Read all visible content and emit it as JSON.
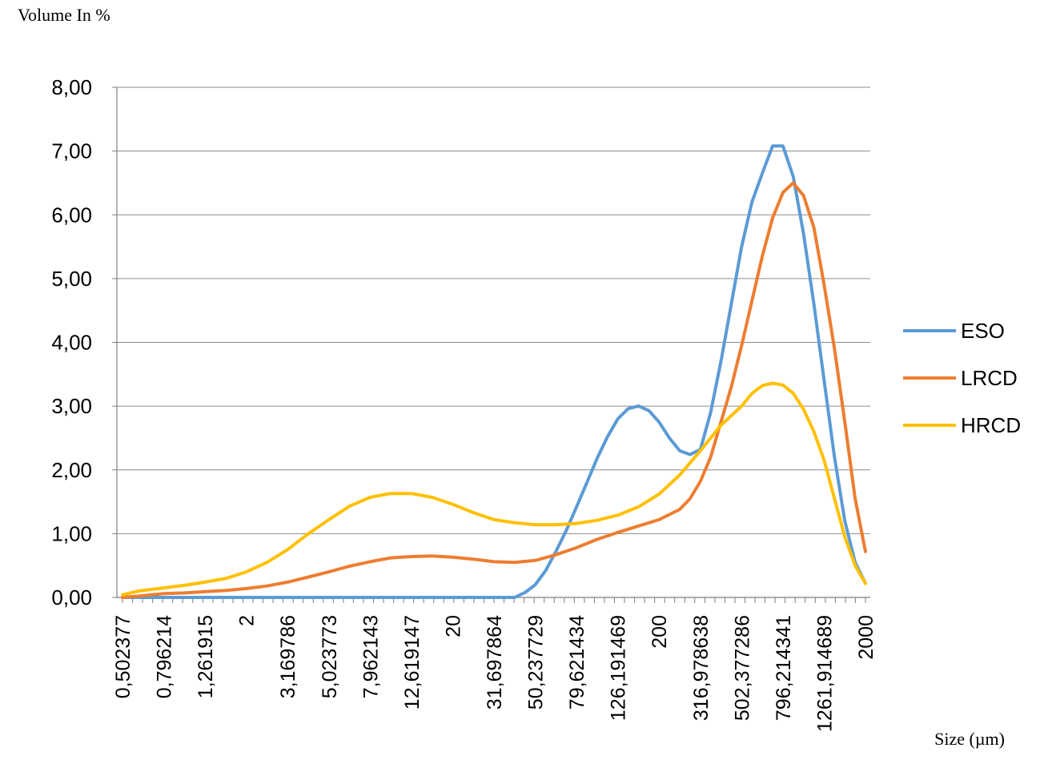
{
  "chart_data": {
    "type": "line",
    "ylabel": "Volume In %",
    "xlabel": "Size (µm)",
    "ylim": [
      0,
      8
    ],
    "y_ticks": [
      "0,00",
      "1,00",
      "2,00",
      "3,00",
      "4,00",
      "5,00",
      "6,00",
      "7,00",
      "8,00"
    ],
    "x_scale": "log",
    "x_ticks": [
      "0,502377",
      "0,796214",
      "1,261915",
      "2",
      "3,169786",
      "5,023773",
      "7,962143",
      "12,619147",
      "20",
      "31,697864",
      "50,237729",
      "79,621434",
      "126,191469",
      "200",
      "316,978638",
      "502,377286",
      "796,214341",
      "1261,914689",
      "2000"
    ],
    "x_tick_values": [
      0.502377,
      0.796214,
      1.261915,
      2,
      3.169786,
      5.023773,
      7.962143,
      12.619147,
      20,
      31.697864,
      50.237729,
      79.621434,
      126.191469,
      200,
      316.978638,
      502.377286,
      796.214341,
      1261.914689,
      2000
    ],
    "grid": true,
    "legend": "right",
    "series": [
      {
        "name": "ESO",
        "color": "#5B9BD5",
        "x": [
          0.502377,
          0.796214,
          1.261915,
          2,
          3.169786,
          5.023773,
          7.962143,
          12.619147,
          20,
          31.697864,
          40,
          45,
          50.237729,
          56.4,
          63.2,
          71,
          79.621434,
          89.3,
          100.2,
          112.5,
          126.191469,
          141.6,
          158.9,
          178.3,
          200,
          224.4,
          251.8,
          282.5,
          316.978638,
          355.6,
          399,
          447.7,
          502.377286,
          563.6,
          632.4,
          709.6,
          796.214341,
          893.4,
          1002.4,
          1124.7,
          1261.914689,
          1415.9,
          1588.7,
          1782.5,
          2000
        ],
        "values": [
          0,
          0,
          0,
          0,
          0,
          0,
          0,
          0,
          0,
          0,
          0,
          0.08,
          0.2,
          0.42,
          0.72,
          1.05,
          1.42,
          1.8,
          2.18,
          2.52,
          2.8,
          2.96,
          3.0,
          2.93,
          2.75,
          2.5,
          2.3,
          2.24,
          2.32,
          2.9,
          3.7,
          4.6,
          5.5,
          6.2,
          6.65,
          7.08,
          7.08,
          6.6,
          5.7,
          4.6,
          3.4,
          2.2,
          1.2,
          0.55,
          0.22
        ]
      },
      {
        "name": "LRCD",
        "color": "#ED7D31",
        "x": [
          0.502377,
          0.6,
          0.796214,
          1,
          1.261915,
          1.6,
          2,
          2.52,
          3.169786,
          4,
          5.023773,
          6.32,
          7.962143,
          10,
          12.619147,
          15.9,
          20,
          25.2,
          31.697864,
          40,
          50.237729,
          63.2,
          79.621434,
          100.2,
          126.191469,
          158.9,
          200,
          224.4,
          251.8,
          282.5,
          316.978638,
          355.6,
          399,
          447.7,
          502.377286,
          563.6,
          632.4,
          709.6,
          796.214341,
          893.4,
          1002.4,
          1124.7,
          1261.914689,
          1415.9,
          1588.7,
          1782.5,
          2000
        ],
        "values": [
          0,
          0.02,
          0.06,
          0.07,
          0.09,
          0.11,
          0.14,
          0.18,
          0.24,
          0.32,
          0.4,
          0.49,
          0.56,
          0.62,
          0.64,
          0.65,
          0.63,
          0.6,
          0.56,
          0.55,
          0.58,
          0.67,
          0.78,
          0.91,
          1.02,
          1.12,
          1.22,
          1.3,
          1.38,
          1.55,
          1.82,
          2.2,
          2.75,
          3.3,
          3.95,
          4.65,
          5.35,
          5.95,
          6.35,
          6.5,
          6.3,
          5.8,
          4.9,
          3.9,
          2.75,
          1.55,
          0.72
        ]
      },
      {
        "name": "HRCD",
        "color": "#FFC000",
        "x": [
          0.502377,
          0.6,
          0.796214,
          1,
          1.261915,
          1.6,
          2,
          2.52,
          3.169786,
          4,
          5.023773,
          6.32,
          7.962143,
          10,
          12.619147,
          15.9,
          20,
          25.2,
          31.697864,
          40,
          50.237729,
          63.2,
          79.621434,
          100.2,
          126.191469,
          158.9,
          200,
          251.8,
          316.978638,
          399,
          502.377286,
          563.6,
          632.4,
          709.6,
          796.214341,
          893.4,
          1002.4,
          1124.7,
          1261.914689,
          1415.9,
          1588.7,
          1782.5,
          2000
        ],
        "values": [
          0.04,
          0.1,
          0.15,
          0.19,
          0.24,
          0.3,
          0.4,
          0.55,
          0.75,
          1.0,
          1.22,
          1.43,
          1.57,
          1.63,
          1.63,
          1.57,
          1.46,
          1.33,
          1.22,
          1.17,
          1.14,
          1.14,
          1.16,
          1.21,
          1.29,
          1.42,
          1.62,
          1.92,
          2.3,
          2.7,
          3.0,
          3.2,
          3.32,
          3.36,
          3.33,
          3.2,
          2.95,
          2.6,
          2.15,
          1.55,
          0.95,
          0.5,
          0.22
        ]
      }
    ]
  }
}
